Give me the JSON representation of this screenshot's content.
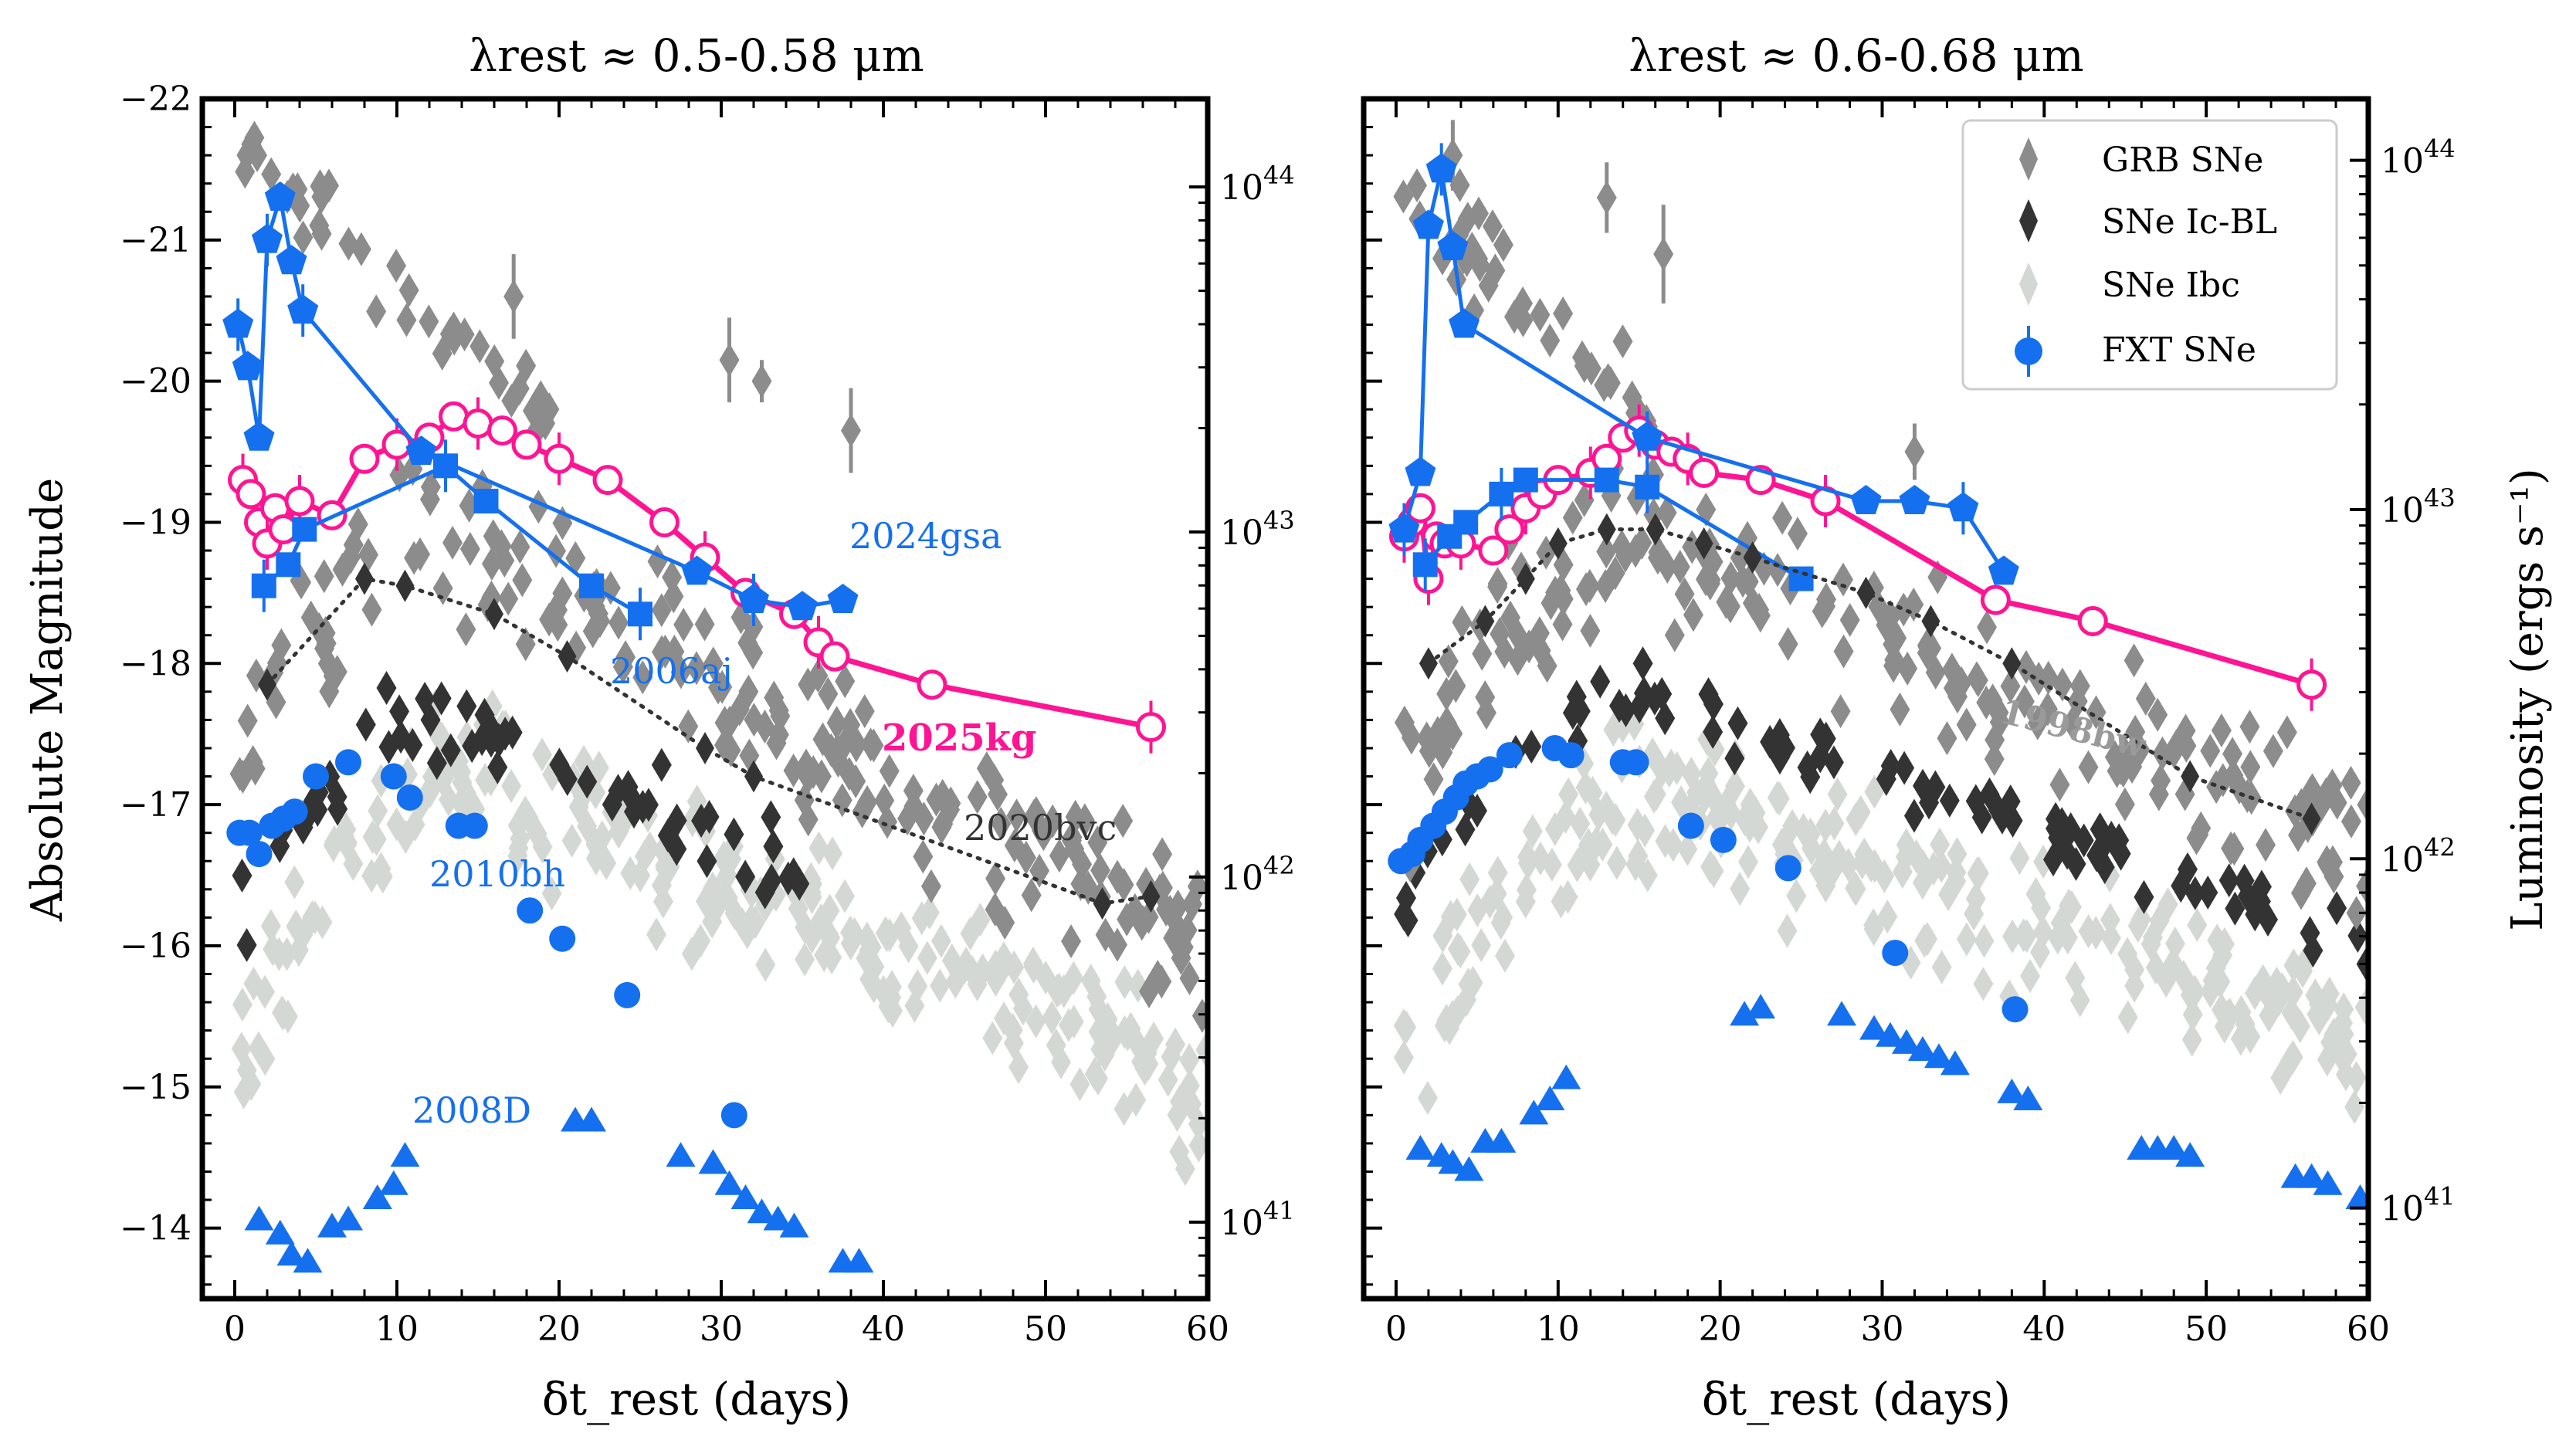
{
  "colors": {
    "grb": "#8c8c8c",
    "iclbl": "#333333",
    "ibc": "#d4d8d4",
    "fxt": "#1570ef",
    "kg": "#ff1493",
    "dotted": "#333333",
    "bw": "#9a9a9a"
  },
  "shared": {
    "xlabel": "δt_rest (days)",
    "ylabel_left": "Absolute Magnitude",
    "ylabel_right": "Luminosity (ergs s⁻¹)",
    "xticks": [
      "0",
      "10",
      "20",
      "30",
      "40",
      "50",
      "60"
    ],
    "yticks": [
      "−22",
      "−21",
      "−20",
      "−19",
      "−18",
      "−17",
      "−16",
      "−15",
      "−14"
    ],
    "lumticks_base": "10",
    "lumticks_exp": [
      "44",
      "43",
      "42",
      "41"
    ]
  },
  "legend": {
    "grb": "GRB SNe",
    "iclbl": "SNe Ic-BL",
    "ibc": "SNe Ibc",
    "fxt": "FXT SNe"
  },
  "chart_data": [
    {
      "type": "scatter",
      "title": "λrest ≈ 0.5-0.58 μm",
      "xlim": [
        -2,
        60
      ],
      "ylim": [
        -13.5,
        -22
      ],
      "lumlim": [
        6e+40,
        1.8e+44
      ],
      "annotations": {
        "a2024gsa": "2024gsa",
        "a2006aj": "2006aj",
        "a2025kg": "2025kg",
        "a2020bvc": "2020bvc",
        "a2010bh": "2010bh",
        "a2008D": "2008D"
      },
      "series": [
        {
          "name": "2025kg",
          "type": "line+open-circle",
          "x": [
            0.5,
            1.0,
            1.5,
            2.0,
            2.5,
            3.0,
            4.0,
            6.0,
            8.0,
            10.0,
            12.0,
            13.5,
            15.0,
            16.5,
            18.0,
            20.0,
            23.0,
            26.5,
            29.0,
            31.5,
            34.5,
            36.0,
            37.0,
            43.0,
            56.5
          ],
          "y": [
            -19.3,
            -19.2,
            -19.0,
            -18.85,
            -19.1,
            -18.95,
            -19.15,
            -19.05,
            -19.45,
            -19.55,
            -19.6,
            -19.75,
            -19.7,
            -19.65,
            -19.55,
            -19.45,
            -19.3,
            -19.0,
            -18.75,
            -18.5,
            -18.35,
            -18.15,
            -18.05,
            -17.85,
            -17.55
          ]
        },
        {
          "name": "2024gsa",
          "type": "line+pentagon",
          "x": [
            0.2,
            0.8,
            1.5,
            2.0,
            2.8,
            3.5,
            4.2,
            11.5,
            28.5,
            32.0,
            35.0,
            37.5
          ],
          "y": [
            -20.4,
            -20.1,
            -19.6,
            -21.0,
            -21.3,
            -20.85,
            -20.5,
            -19.5,
            -18.65,
            -18.45,
            -18.4,
            -18.45
          ]
        },
        {
          "name": "2006aj",
          "type": "line+square",
          "x": [
            1.8,
            3.3,
            4.3,
            13.0,
            15.5,
            22.0,
            25.0
          ],
          "y": [
            -18.55,
            -18.7,
            -18.95,
            -19.4,
            -19.15,
            -18.55,
            -18.35
          ]
        },
        {
          "name": "2020bvc",
          "type": "dotted+diamond",
          "x": [
            2.0,
            8.0,
            10.5,
            16.0,
            20.5,
            29.0,
            32.0,
            53.5,
            56.5
          ],
          "y": [
            -17.85,
            -18.6,
            -18.55,
            -18.35,
            -18.05,
            -17.4,
            -17.2,
            -16.3,
            -16.35
          ]
        },
        {
          "name": "2010bh",
          "type": "circle",
          "x": [
            0.3,
            0.9,
            1.5,
            2.3,
            3.0,
            3.7,
            5.0,
            7.0,
            9.8,
            10.8,
            13.8,
            14.8,
            18.2,
            20.2,
            24.2,
            30.8
          ],
          "y": [
            -16.8,
            -16.8,
            -16.65,
            -16.85,
            -16.9,
            -16.95,
            -17.2,
            -17.3,
            -17.2,
            -17.05,
            -16.85,
            -16.85,
            -16.25,
            -16.05,
            -15.65,
            -14.8
          ]
        },
        {
          "name": "2008D",
          "type": "triangle",
          "x": [
            1.5,
            2.8,
            3.5,
            4.5,
            6.0,
            7.0,
            8.8,
            9.8,
            10.5,
            21.0,
            22.0,
            27.5,
            29.5,
            30.5,
            31.5,
            32.5,
            33.5,
            34.5,
            37.5,
            38.5
          ],
          "y": [
            -14.05,
            -13.95,
            -13.8,
            -13.75,
            -14.0,
            -14.05,
            -14.2,
            -14.3,
            -14.5,
            -14.75,
            -14.75,
            -14.5,
            -14.45,
            -14.3,
            -14.2,
            -14.1,
            -14.05,
            -14.0,
            -13.75,
            -13.75
          ]
        }
      ]
    },
    {
      "type": "scatter",
      "title": "λrest ≈ 0.6-0.68 μm",
      "xlim": [
        -2,
        60
      ],
      "ylim": [
        -13.5,
        -22
      ],
      "lumlim": [
        5.5e+40,
        1.5e+44
      ],
      "annotations": {
        "a1998bw": "1998bw"
      },
      "series": [
        {
          "name": "2025kg",
          "type": "line+open-circle",
          "x": [
            0.5,
            1.0,
            1.5,
            2.0,
            2.5,
            3.0,
            4.0,
            6.0,
            7.0,
            8.0,
            9.0,
            10.0,
            12.0,
            13.0,
            14.0,
            15.0,
            16.0,
            17.0,
            18.0,
            19.0,
            22.5,
            26.5,
            37.0,
            43.0,
            56.5
          ],
          "y": [
            -18.9,
            -19.0,
            -19.1,
            -18.6,
            -18.9,
            -18.85,
            -18.85,
            -18.8,
            -18.95,
            -19.1,
            -19.2,
            -19.3,
            -19.35,
            -19.45,
            -19.6,
            -19.65,
            -19.55,
            -19.5,
            -19.45,
            -19.35,
            -19.3,
            -19.15,
            -18.45,
            -18.3,
            -17.85
          ]
        },
        {
          "name": "2024gsa",
          "type": "line+pentagon",
          "x": [
            0.5,
            1.5,
            2.0,
            2.8,
            3.5,
            4.2,
            15.5,
            29.0,
            32.0,
            35.0,
            37.5
          ],
          "y": [
            -18.95,
            -19.35,
            -21.1,
            -21.5,
            -20.95,
            -20.4,
            -19.6,
            -19.15,
            -19.15,
            -19.1,
            -18.65
          ]
        },
        {
          "name": "2006aj",
          "type": "line+square",
          "x": [
            1.8,
            3.3,
            4.3,
            6.5,
            8.0,
            13.0,
            15.5,
            25.0
          ],
          "y": [
            -18.7,
            -18.9,
            -19.0,
            -19.2,
            -19.3,
            -19.3,
            -19.25,
            -18.6
          ]
        },
        {
          "name": "2020bvc",
          "type": "dotted+diamond",
          "x": [
            2.0,
            5.5,
            8.0,
            10.0,
            13.0,
            16.0,
            19.0,
            22.0,
            29.0,
            33.0,
            38.0,
            49.0,
            56.5
          ],
          "y": [
            -18.0,
            -18.3,
            -18.6,
            -18.85,
            -18.95,
            -18.95,
            -18.85,
            -18.75,
            -18.5,
            -18.3,
            -18.0,
            -17.2,
            -16.9
          ]
        },
        {
          "name": "2010bh",
          "type": "circle",
          "x": [
            0.3,
            1.0,
            1.5,
            2.3,
            3.0,
            3.7,
            4.3,
            5.0,
            5.8,
            7.0,
            9.8,
            10.8,
            14.0,
            14.8,
            18.2,
            20.2,
            24.2,
            30.8,
            38.2
          ],
          "y": [
            -16.6,
            -16.65,
            -16.75,
            -16.85,
            -16.95,
            -17.05,
            -17.15,
            -17.2,
            -17.25,
            -17.35,
            -17.4,
            -17.35,
            -17.3,
            -17.3,
            -16.85,
            -16.75,
            -16.55,
            -15.95,
            -15.55
          ]
        },
        {
          "name": "2008D",
          "type": "triangle",
          "x": [
            1.5,
            2.8,
            3.5,
            4.5,
            5.5,
            6.5,
            8.5,
            9.5,
            10.5,
            21.5,
            22.5,
            27.5,
            29.5,
            30.5,
            31.5,
            32.5,
            33.5,
            34.5,
            38.0,
            39.0,
            46.0,
            47.0,
            48.0,
            49.0,
            55.5,
            56.5,
            57.5,
            59.5
          ],
          "y": [
            -14.55,
            -14.5,
            -14.45,
            -14.4,
            -14.6,
            -14.6,
            -14.8,
            -14.9,
            -15.05,
            -15.5,
            -15.55,
            -15.5,
            -15.4,
            -15.35,
            -15.3,
            -15.25,
            -15.2,
            -15.15,
            -14.95,
            -14.9,
            -14.55,
            -14.55,
            -14.55,
            -14.5,
            -14.35,
            -14.35,
            -14.3,
            -14.2
          ]
        }
      ]
    }
  ]
}
